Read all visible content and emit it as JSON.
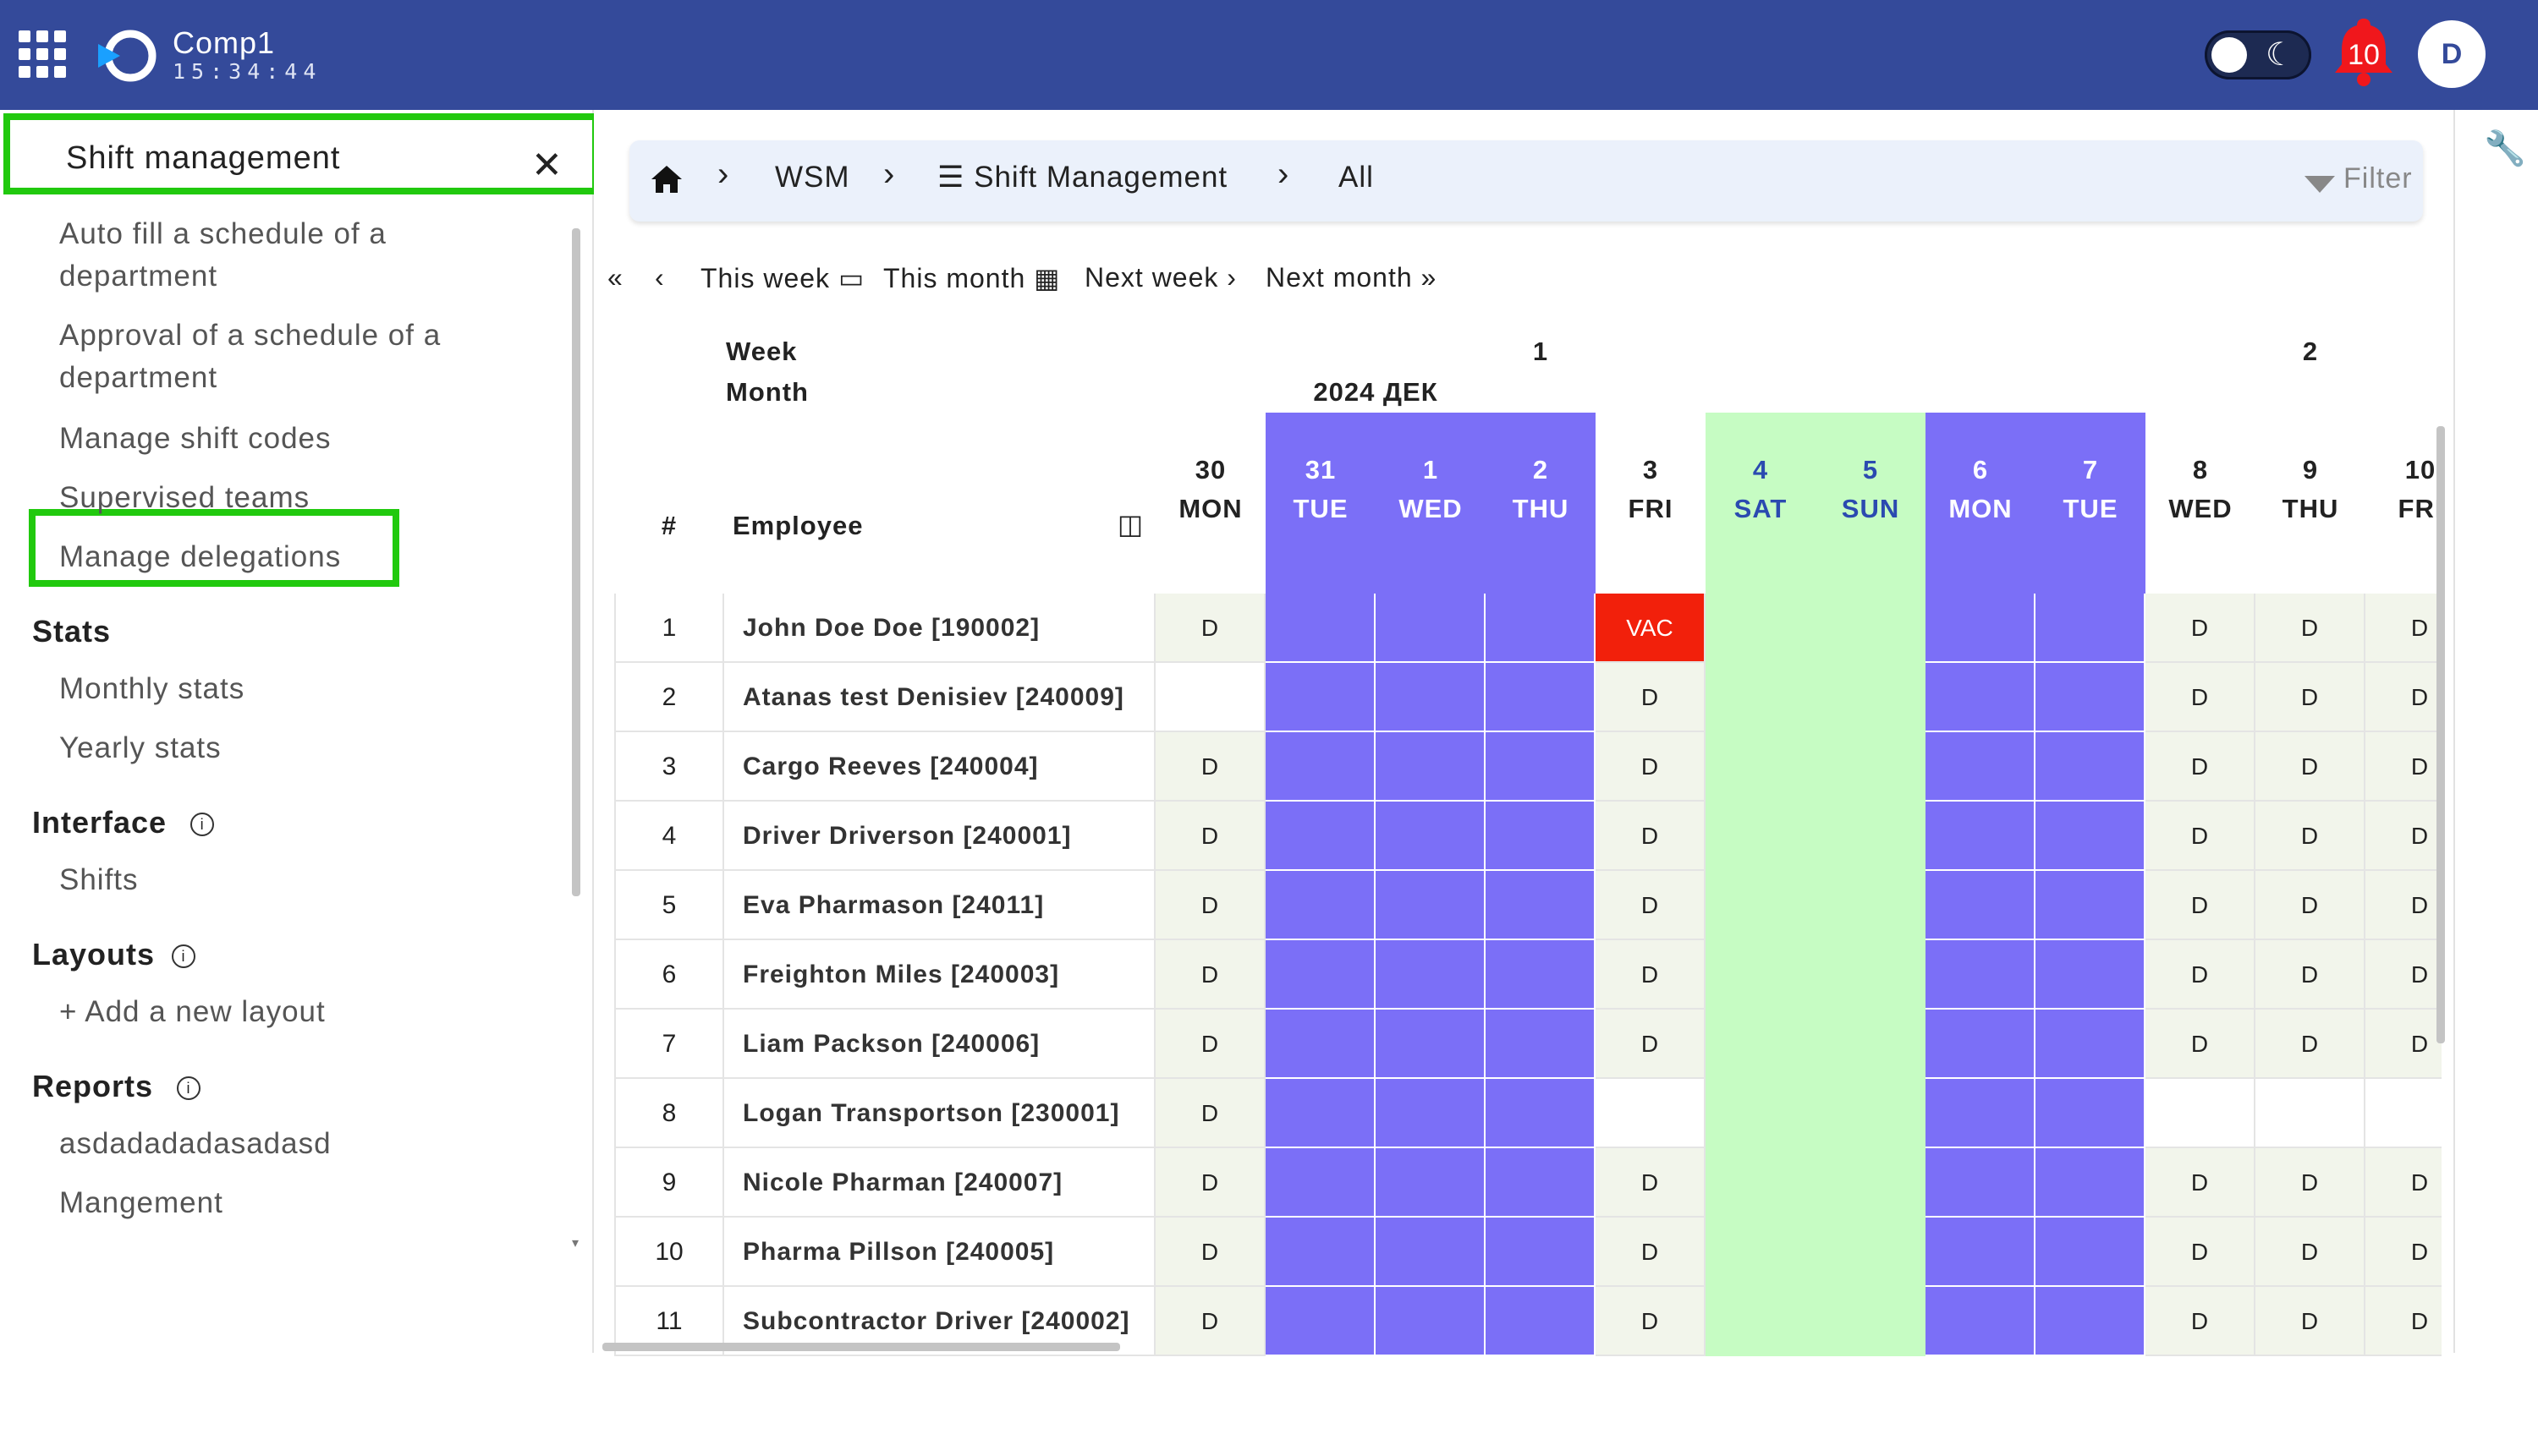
{
  "header": {
    "company": "Comp1",
    "clock": "15:34:44",
    "notifications_count": "10",
    "avatar_initial": "D",
    "colors": {
      "bar": "#344a9a"
    }
  },
  "sidebar": {
    "title": "Shift management",
    "items": [
      {
        "label": "Auto fill a schedule of a department"
      },
      {
        "label": "Approval of a schedule of a department"
      },
      {
        "label": "Manage shift codes"
      },
      {
        "label": "Supervised teams"
      },
      {
        "label": "Manage delegations"
      }
    ],
    "sections": [
      {
        "title": "Stats",
        "items": [
          "Monthly stats",
          "Yearly stats"
        ]
      },
      {
        "title": "Interface",
        "items": [
          "Shifts"
        ]
      },
      {
        "title": "Layouts",
        "items": [
          "+ Add a new layout"
        ]
      },
      {
        "title": "Reports",
        "items": [
          "asdadadadasadasd",
          "Mangement"
        ]
      }
    ]
  },
  "breadcrumb": {
    "wsm": "WSM",
    "shift_management": "Shift Management",
    "all": "All",
    "filter": "Filter"
  },
  "weeknav": {
    "this_week": "This week",
    "this_month": "This month",
    "next_week": "Next week",
    "next_month": "Next month"
  },
  "schedule": {
    "labels": {
      "week": "Week",
      "month": "Month",
      "num": "#",
      "employee": "Employee"
    },
    "weeks": [
      "1",
      "2"
    ],
    "month_label": "2024 ДЕК",
    "days": [
      {
        "num": "30",
        "dow": "MON",
        "type": "normal"
      },
      {
        "num": "31",
        "dow": "TUE",
        "type": "holiday"
      },
      {
        "num": "1",
        "dow": "WED",
        "type": "holiday"
      },
      {
        "num": "2",
        "dow": "THU",
        "type": "holiday"
      },
      {
        "num": "3",
        "dow": "FRI",
        "type": "normal"
      },
      {
        "num": "4",
        "dow": "SAT",
        "type": "weekend"
      },
      {
        "num": "5",
        "dow": "SUN",
        "type": "weekend"
      },
      {
        "num": "6",
        "dow": "MON",
        "type": "holiday"
      },
      {
        "num": "7",
        "dow": "TUE",
        "type": "holiday"
      },
      {
        "num": "8",
        "dow": "WED",
        "type": "normal"
      },
      {
        "num": "9",
        "dow": "THU",
        "type": "normal"
      },
      {
        "num": "10",
        "dow": "FRI",
        "type": "normal"
      }
    ],
    "rows": [
      {
        "n": "1",
        "name": "John Doe Doe [190002]",
        "cells": [
          "D",
          "",
          "",
          "",
          "VAC",
          "",
          "",
          "",
          "",
          "D",
          "D",
          "D"
        ]
      },
      {
        "n": "2",
        "name": "Atanas test Denisiev [240009]",
        "cells": [
          "",
          "",
          "",
          "",
          "D",
          "",
          "",
          "",
          "",
          "D",
          "D",
          "D"
        ]
      },
      {
        "n": "3",
        "name": "Cargo Reeves [240004]",
        "cells": [
          "D",
          "",
          "",
          "",
          "D",
          "",
          "",
          "",
          "",
          "D",
          "D",
          "D"
        ]
      },
      {
        "n": "4",
        "name": "Driver Driverson [240001]",
        "cells": [
          "D",
          "",
          "",
          "",
          "D",
          "",
          "",
          "",
          "",
          "D",
          "D",
          "D"
        ]
      },
      {
        "n": "5",
        "name": "Eva Pharmason [24011]",
        "cells": [
          "D",
          "",
          "",
          "",
          "D",
          "",
          "",
          "",
          "",
          "D",
          "D",
          "D"
        ]
      },
      {
        "n": "6",
        "name": "Freighton Miles [240003]",
        "cells": [
          "D",
          "",
          "",
          "",
          "D",
          "",
          "",
          "",
          "",
          "D",
          "D",
          "D"
        ]
      },
      {
        "n": "7",
        "name": "Liam Packson [240006]",
        "cells": [
          "D",
          "",
          "",
          "",
          "D",
          "",
          "",
          "",
          "",
          "D",
          "D",
          "D"
        ]
      },
      {
        "n": "8",
        "name": "Logan Transportson [230001]",
        "cells": [
          "D",
          "",
          "",
          "",
          "",
          "",
          "",
          "",
          "",
          "",
          "",
          ""
        ]
      },
      {
        "n": "9",
        "name": "Nicole Pharman [240007]",
        "cells": [
          "D",
          "",
          "",
          "",
          "D",
          "",
          "",
          "",
          "",
          "D",
          "D",
          "D"
        ]
      },
      {
        "n": "10",
        "name": "Pharma Pillson [240005]",
        "cells": [
          "D",
          "",
          "",
          "",
          "D",
          "",
          "",
          "",
          "",
          "D",
          "D",
          "D"
        ]
      },
      {
        "n": "11",
        "name": "Subcontractor Driver [240002]",
        "cells": [
          "D",
          "",
          "",
          "",
          "D",
          "",
          "",
          "",
          "",
          "D",
          "D",
          "D"
        ]
      }
    ],
    "colors": {
      "holiday": "#7b6ff7",
      "weekend": "#c6fcc3",
      "vacation": "#f2200b",
      "shift_bg": "#f2f5eb",
      "weekend_text": "#2b4ab0"
    }
  }
}
